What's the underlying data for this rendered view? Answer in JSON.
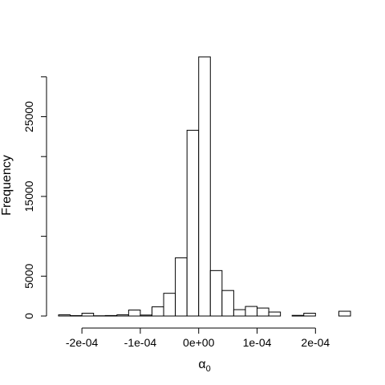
{
  "chart_data": {
    "type": "bar",
    "title": "",
    "xlabel": "α0",
    "ylabel": "Frequency",
    "bin_width": 2e-05,
    "bins": [
      {
        "x0": -0.00024,
        "x1": -0.00022,
        "count": 150
      },
      {
        "x0": -0.00022,
        "x1": -0.0002,
        "count": 50
      },
      {
        "x0": -0.0002,
        "x1": -0.00018,
        "count": 350
      },
      {
        "x0": -0.00018,
        "x1": -0.00016,
        "count": 30
      },
      {
        "x0": -0.00016,
        "x1": -0.00014,
        "count": 60
      },
      {
        "x0": -0.00014,
        "x1": -0.00012,
        "count": 150
      },
      {
        "x0": -0.00012,
        "x1": -0.0001,
        "count": 750
      },
      {
        "x0": -0.0001,
        "x1": -8e-05,
        "count": 120
      },
      {
        "x0": -8e-05,
        "x1": -6e-05,
        "count": 1150
      },
      {
        "x0": -6e-05,
        "x1": -4e-05,
        "count": 2850
      },
      {
        "x0": -4e-05,
        "x1": -2e-05,
        "count": 7300
      },
      {
        "x0": -2e-05,
        "x1": 0.0,
        "count": 23300
      },
      {
        "x0": 0.0,
        "x1": 2e-05,
        "count": 32500
      },
      {
        "x0": 2e-05,
        "x1": 4e-05,
        "count": 5700
      },
      {
        "x0": 4e-05,
        "x1": 6e-05,
        "count": 3200
      },
      {
        "x0": 6e-05,
        "x1": 8e-05,
        "count": 800
      },
      {
        "x0": 8e-05,
        "x1": 0.0001,
        "count": 1200
      },
      {
        "x0": 0.0001,
        "x1": 0.00012,
        "count": 1000
      },
      {
        "x0": 0.00012,
        "x1": 0.00014,
        "count": 500
      },
      {
        "x0": 0.00014,
        "x1": 0.00016,
        "count": 0
      },
      {
        "x0": 0.00016,
        "x1": 0.00018,
        "count": 80
      },
      {
        "x0": 0.00018,
        "x1": 0.0002,
        "count": 350
      },
      {
        "x0": 0.0002,
        "x1": 0.00022,
        "count": 0
      },
      {
        "x0": 0.00022,
        "x1": 0.00024,
        "count": 0
      },
      {
        "x0": 0.00024,
        "x1": 0.00026,
        "count": 600
      }
    ],
    "xlim": [
      -0.00024,
      0.00026
    ],
    "ylim": [
      0,
      30000
    ],
    "x_ticks": [
      -0.0002,
      -0.0001,
      0,
      0.0001,
      0.0002
    ],
    "x_tick_labels": [
      "-2e-04",
      "-1e-04",
      "0e+00",
      "1e-04",
      "2e-04"
    ],
    "y_ticks": [
      0,
      5000,
      10000,
      15000,
      20000,
      25000,
      30000
    ],
    "y_tick_labels": [
      "0",
      "5000",
      "",
      "15000",
      "",
      "25000",
      ""
    ],
    "grid": false,
    "colors": {
      "bar_fill": "#ffffff",
      "bar_stroke": "#000000",
      "axis": "#000000"
    }
  }
}
